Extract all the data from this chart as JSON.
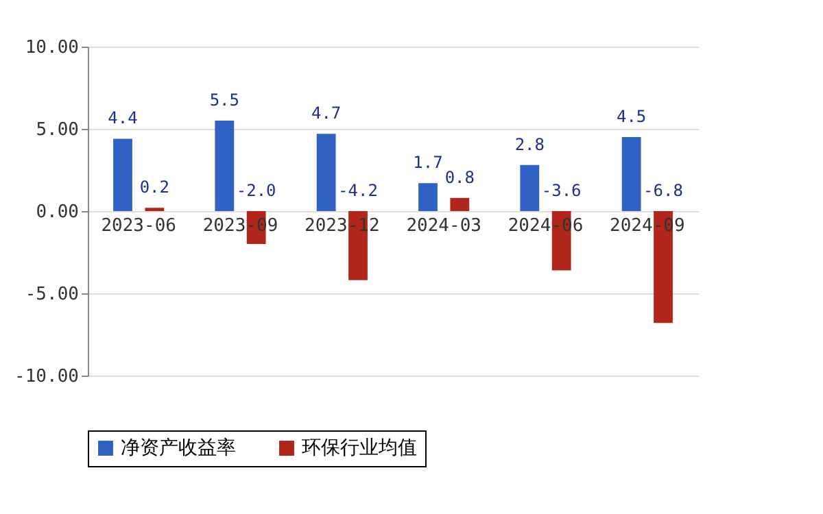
{
  "chart_data": {
    "type": "bar",
    "categories": [
      "2023-06",
      "2023-09",
      "2023-12",
      "2024-03",
      "2024-06",
      "2024-09"
    ],
    "series": [
      {
        "name": "净资产收益率",
        "color": "#3062c4",
        "values": [
          4.4,
          5.5,
          4.7,
          1.7,
          2.8,
          4.5
        ],
        "value_labels": [
          "4.4",
          "5.5",
          "4.7",
          "1.7",
          "2.8",
          "4.5"
        ]
      },
      {
        "name": "环保行业均值",
        "color": "#b0261a",
        "values": [
          0.2,
          -2.0,
          -4.2,
          0.8,
          -3.6,
          -6.8
        ],
        "value_labels": [
          "0.2",
          "-2.0",
          "-4.2",
          "0.8",
          "-3.6",
          "-6.8"
        ]
      }
    ],
    "ylim": [
      -10,
      10
    ],
    "yticks": [
      {
        "value": -10,
        "label": "-10.00"
      },
      {
        "value": -5,
        "label": "-5.00"
      },
      {
        "value": 0,
        "label": "0.00"
      },
      {
        "value": 5,
        "label": "5.00"
      },
      {
        "value": 10,
        "label": "10.00"
      }
    ],
    "grid": "y",
    "legend": "bottom"
  }
}
